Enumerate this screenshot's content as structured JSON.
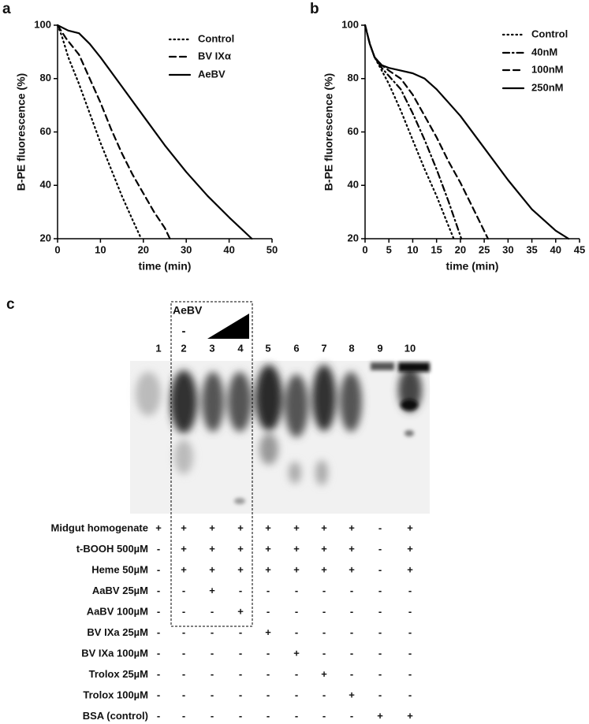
{
  "chart_data": [
    {
      "type": "line",
      "panel": "a",
      "xlabel": "time (min)",
      "ylabel": "B-PE fluorescence (%)",
      "xlim": [
        0,
        50
      ],
      "xticks": [
        0,
        10,
        20,
        30,
        40,
        50
      ],
      "ylim": [
        20,
        100
      ],
      "yticks": [
        20,
        40,
        60,
        80,
        100
      ],
      "series": [
        {
          "name": "Control",
          "color": "#000000",
          "style": "dotted",
          "x": [
            0,
            1,
            2.5,
            5,
            7.5,
            10,
            12.5,
            15,
            17.5,
            19.5
          ],
          "values": [
            100,
            96,
            88,
            78,
            67,
            56,
            46,
            36,
            27,
            20
          ]
        },
        {
          "name": "BV IXα",
          "color": "#000000",
          "style": "dashed",
          "x": [
            0,
            2,
            5,
            7.5,
            10,
            12.5,
            15,
            17.5,
            20,
            22.5,
            25,
            26.2
          ],
          "values": [
            100,
            95,
            89,
            80,
            71,
            61,
            52,
            44,
            37,
            30,
            24,
            20
          ]
        },
        {
          "name": "AeBV",
          "color": "#000000",
          "style": "solid",
          "x": [
            0,
            2.5,
            5,
            7.5,
            10,
            15,
            20,
            25,
            30,
            35,
            40,
            45.3
          ],
          "values": [
            100,
            98,
            97,
            93,
            88,
            77,
            66,
            55,
            45,
            36,
            28,
            20
          ]
        }
      ]
    },
    {
      "type": "line",
      "panel": "b",
      "xlabel": "time (min)",
      "ylabel": "B-PE fluorescence (%)",
      "xlim": [
        0,
        45
      ],
      "xticks": [
        0,
        5,
        10,
        15,
        20,
        25,
        30,
        35,
        40,
        45
      ],
      "ylim": [
        20,
        100
      ],
      "yticks": [
        20,
        40,
        60,
        80,
        100
      ],
      "series": [
        {
          "name": "Control",
          "color": "#000000",
          "style": "dotted",
          "x": [
            0,
            1,
            2,
            3.5,
            5,
            7.5,
            10,
            12.5,
            15,
            17,
            18.6
          ],
          "values": [
            100,
            93,
            88,
            83,
            78,
            68,
            57,
            46,
            36,
            27,
            20
          ]
        },
        {
          "name": "40nM",
          "color": "#000000",
          "style": "dashdot",
          "x": [
            0,
            1,
            2,
            3.5,
            5,
            7.5,
            10,
            12.5,
            15,
            17.5,
            20.2
          ],
          "values": [
            100,
            93,
            88,
            84,
            81,
            76,
            67,
            57,
            46,
            34,
            20
          ]
        },
        {
          "name": "100nM",
          "color": "#000000",
          "style": "dashed",
          "x": [
            0,
            1,
            2,
            3.5,
            5,
            7.5,
            10,
            12.5,
            15,
            17.5,
            20,
            22.5,
            25.8
          ],
          "values": [
            100,
            93,
            88,
            85,
            83,
            80,
            74,
            66,
            58,
            49,
            41,
            32,
            20
          ]
        },
        {
          "name": "250nM",
          "color": "#000000",
          "style": "solid",
          "x": [
            0,
            1,
            2,
            3.5,
            5,
            7.5,
            10,
            12.5,
            15,
            17.5,
            20,
            25,
            30,
            35,
            40,
            42.7
          ],
          "values": [
            100,
            93,
            88,
            85,
            84,
            83,
            82,
            80,
            76,
            71,
            66,
            54,
            42,
            31,
            23,
            20
          ]
        }
      ]
    }
  ],
  "panel_c": {
    "label": "c",
    "treatment": "AeBV",
    "minus": "-",
    "lanes": [
      "1",
      "2",
      "3",
      "4",
      "5",
      "6",
      "7",
      "8",
      "9",
      "10"
    ],
    "rows": [
      {
        "label": "Midgut homogenate",
        "marks": [
          "+",
          "+",
          "+",
          "+",
          "+",
          "+",
          "+",
          "+",
          "-",
          "+"
        ]
      },
      {
        "label": "t-BOOH 500µM",
        "marks": [
          "-",
          "+",
          "+",
          "+",
          "+",
          "+",
          "+",
          "+",
          "-",
          "+"
        ]
      },
      {
        "label": "Heme 50µM",
        "marks": [
          "-",
          "+",
          "+",
          "+",
          "+",
          "+",
          "+",
          "+",
          "-",
          "+"
        ]
      },
      {
        "label": "AaBV 25µM",
        "marks": [
          "-",
          "-",
          "+",
          "-",
          "-",
          "-",
          "-",
          "-",
          "-",
          "-"
        ]
      },
      {
        "label": "AaBV 100µM",
        "marks": [
          "-",
          "-",
          "-",
          "+",
          "-",
          "-",
          "-",
          "-",
          "-",
          "-"
        ]
      },
      {
        "label": "BV IXa 25µM",
        "marks": [
          "-",
          "-",
          "-",
          "-",
          "+",
          "-",
          "-",
          "-",
          "-",
          "-"
        ]
      },
      {
        "label": "BV IXa 100µM",
        "marks": [
          "-",
          "-",
          "-",
          "-",
          "-",
          "+",
          "-",
          "-",
          "-",
          "-"
        ]
      },
      {
        "label": "Trolox 25µM",
        "marks": [
          "-",
          "-",
          "-",
          "-",
          "-",
          "-",
          "+",
          "-",
          "-",
          "-"
        ]
      },
      {
        "label": "Trolox 100µM",
        "marks": [
          "-",
          "-",
          "-",
          "-",
          "-",
          "-",
          "-",
          "+",
          "-",
          "-"
        ]
      },
      {
        "label": "BSA (control)",
        "marks": [
          "-",
          "-",
          "-",
          "-",
          "-",
          "-",
          "-",
          "-",
          "+",
          "+"
        ]
      }
    ]
  }
}
